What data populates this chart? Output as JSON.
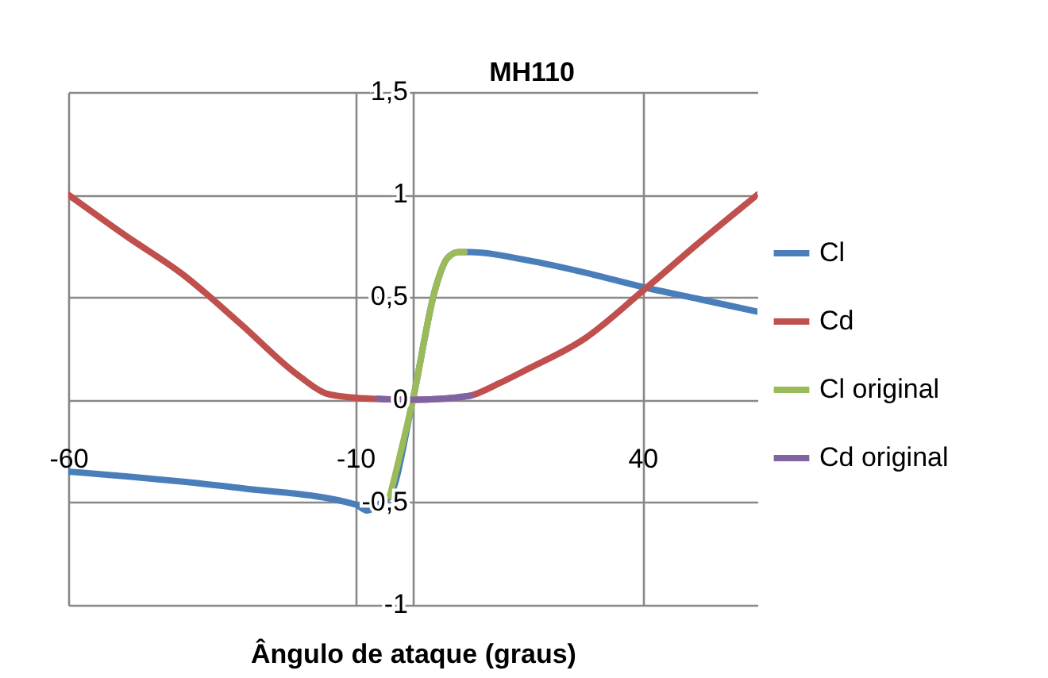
{
  "chart_data": {
    "type": "line",
    "title": "MH110",
    "xlabel": "Ângulo de ataque (graus)",
    "xlim": [
      -60,
      60
    ],
    "xticks": [
      -60,
      -10,
      40
    ],
    "ylim": [
      -1,
      1.5
    ],
    "yticks": [
      {
        "value": -1,
        "label": "-1"
      },
      {
        "value": -0.5,
        "label": "-0,5"
      },
      {
        "value": 0,
        "label": "0"
      },
      {
        "value": 0.5,
        "label": "0,5"
      },
      {
        "value": 1,
        "label": "1"
      },
      {
        "value": 1.5,
        "label": "1,5"
      }
    ],
    "grid": true,
    "legend": "right",
    "marker": "none",
    "line_style": "solid",
    "series": [
      {
        "name": "Cl",
        "color": "#4a7ebb",
        "x": [
          -60,
          -30,
          -10,
          -8,
          -6,
          -4,
          0,
          4,
          6,
          8,
          10,
          20,
          30,
          40,
          50,
          60
        ],
        "values": [
          -0.35,
          -0.43,
          -0.51,
          -0.54,
          -0.51,
          -0.47,
          0,
          0.55,
          0.69,
          0.72,
          0.72,
          0.68,
          0.62,
          0.55,
          0.49,
          0.43
        ]
      },
      {
        "name": "Cd",
        "color": "#c0504d",
        "x": [
          -60,
          -50,
          -40,
          -30,
          -20,
          -15,
          -10,
          -5,
          0,
          5,
          10,
          15,
          20,
          30,
          40,
          50,
          60
        ],
        "values": [
          1.0,
          0.8,
          0.61,
          0.37,
          0.12,
          0.03,
          0.01,
          0.003,
          0,
          0.005,
          0.02,
          0.08,
          0.15,
          0.3,
          0.53,
          0.77,
          1.0
        ]
      },
      {
        "name": "Cl original",
        "color": "#9bbb59",
        "x": [
          -4,
          0,
          4,
          6,
          8,
          9
        ],
        "values": [
          -0.47,
          0,
          0.55,
          0.69,
          0.72,
          0.72
        ]
      },
      {
        "name": "Cd original",
        "color": "#8064a2",
        "x": [
          -6,
          -3,
          0,
          5,
          10
        ],
        "values": [
          0.005,
          0.001,
          0,
          0.005,
          0.02
        ]
      }
    ]
  }
}
